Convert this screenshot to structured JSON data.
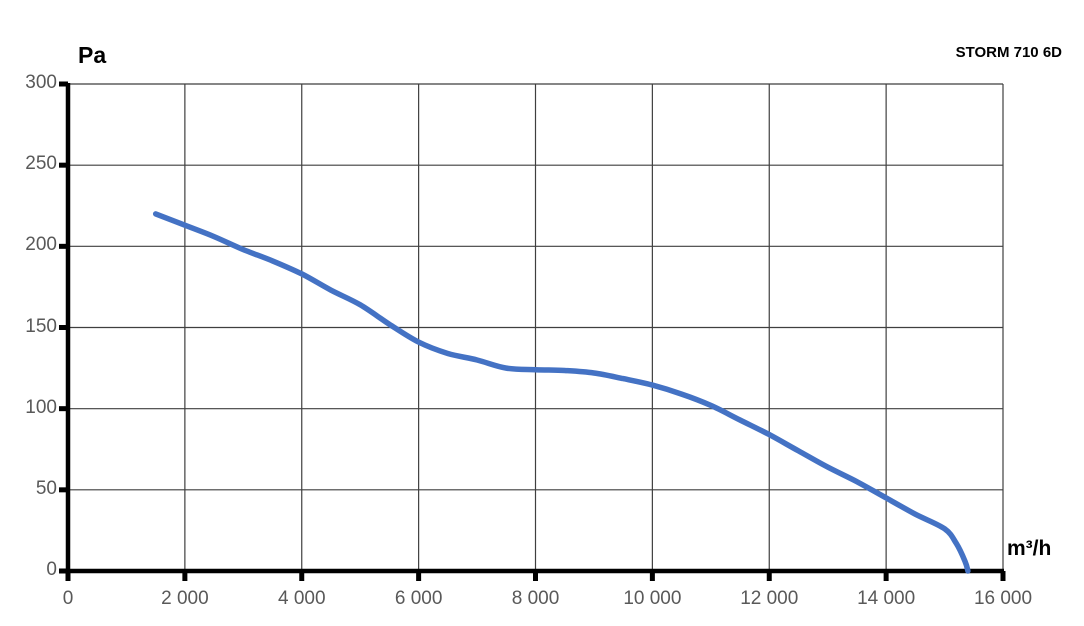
{
  "chart_data": {
    "type": "line",
    "title": "STORM 710 6D",
    "xlabel": "m³/h",
    "ylabel": "Pa",
    "xlim": [
      0,
      16000
    ],
    "ylim": [
      0,
      300
    ],
    "x_ticks": [
      0,
      2000,
      4000,
      6000,
      8000,
      10000,
      12000,
      14000,
      16000
    ],
    "x_tick_labels": [
      "0",
      "2 000",
      "4 000",
      "6 000",
      "8 000",
      "10 000",
      "12 000",
      "14 000",
      "16 000"
    ],
    "y_ticks": [
      0,
      50,
      100,
      150,
      200,
      250,
      300
    ],
    "y_tick_labels": [
      "0",
      "50",
      "100",
      "150",
      "200",
      "250",
      "300"
    ],
    "grid": true,
    "legend_position": "none",
    "colors": {
      "curve": "#4472C4",
      "gridline": "#3f3f3f",
      "axis": "#000000",
      "tick_text": "#595959",
      "background": "#ffffff"
    },
    "series": [
      {
        "name": "STORM 710 6D",
        "points": [
          [
            1500,
            220
          ],
          [
            2000,
            213
          ],
          [
            2500,
            206
          ],
          [
            3000,
            198
          ],
          [
            3500,
            191
          ],
          [
            4000,
            183
          ],
          [
            4500,
            173
          ],
          [
            5000,
            164
          ],
          [
            5500,
            152
          ],
          [
            6000,
            141
          ],
          [
            6500,
            134
          ],
          [
            7000,
            130
          ],
          [
            7500,
            125
          ],
          [
            8000,
            124
          ],
          [
            8500,
            123.5
          ],
          [
            9000,
            122
          ],
          [
            9500,
            118.5
          ],
          [
            10000,
            114.5
          ],
          [
            10500,
            109
          ],
          [
            11000,
            102
          ],
          [
            11500,
            93
          ],
          [
            12000,
            84
          ],
          [
            12500,
            74
          ],
          [
            13000,
            64
          ],
          [
            13500,
            55
          ],
          [
            14000,
            45
          ],
          [
            14500,
            35
          ],
          [
            15000,
            26
          ],
          [
            15200,
            17
          ],
          [
            15350,
            6
          ],
          [
            15400,
            0
          ]
        ]
      }
    ]
  }
}
